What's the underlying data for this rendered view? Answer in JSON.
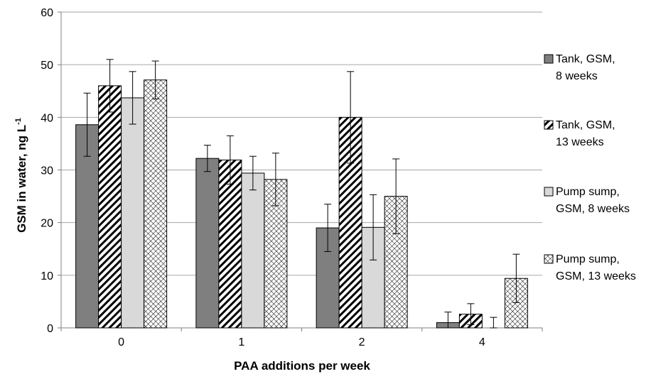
{
  "chart_data": {
    "type": "bar",
    "title": "",
    "xlabel": "PAA additions per week",
    "ylabel_main": "GSM in water, ng L",
    "ylabel_sup": "-1",
    "ylim": [
      0,
      60
    ],
    "yticks": [
      0,
      10,
      20,
      30,
      40,
      50,
      60
    ],
    "grid": "horizontal",
    "legend_position": "right",
    "categories": [
      "0",
      "1",
      "2",
      "4"
    ],
    "series": [
      {
        "name": "Tank, GSM, 8 weeks",
        "legend_lines": [
          "Tank, GSM,",
          "8 weeks"
        ],
        "pattern": "solid-dark",
        "color": "#7f7f7f",
        "values": [
          38.6,
          32.2,
          19.0,
          1.0
        ],
        "errors": [
          6.0,
          2.5,
          4.5,
          2.0
        ]
      },
      {
        "name": "Tank, GSM, 13 weeks",
        "legend_lines": [
          "Tank, GSM,",
          "13 weeks"
        ],
        "pattern": "diagonal-hatch",
        "color": "#000000",
        "values": [
          46.0,
          31.9,
          40.0,
          2.6
        ],
        "errors": [
          5.0,
          4.6,
          8.7,
          2.0
        ]
      },
      {
        "name": "Pump sump, GSM, 8 weeks",
        "legend_lines": [
          "Pump sump,",
          "GSM, 8 weeks"
        ],
        "pattern": "solid-light",
        "color": "#d9d9d9",
        "values": [
          43.7,
          29.4,
          19.1,
          0.0
        ],
        "errors": [
          5.0,
          3.2,
          6.2,
          2.0
        ]
      },
      {
        "name": "Pump sump, GSM, 13 weeks",
        "legend_lines": [
          "Pump sump,",
          "GSM, 13 weeks"
        ],
        "pattern": "cross-hatch",
        "color": "#000000",
        "values": [
          47.1,
          28.2,
          25.0,
          9.4
        ],
        "errors": [
          3.6,
          5.0,
          7.1,
          4.6
        ]
      }
    ]
  }
}
